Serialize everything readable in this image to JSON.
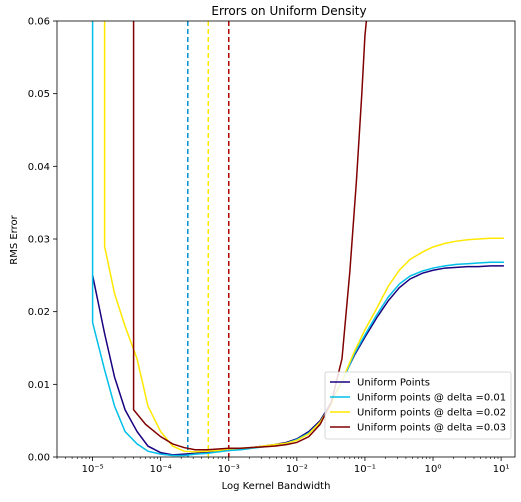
{
  "chart_data": {
    "type": "line",
    "title": "Errors on Uniform Density",
    "xlabel": "Log Kernel Bandwidth",
    "ylabel": "RMS Error",
    "xscale": "log",
    "xlim": [
      3e-06,
      16
    ],
    "ylim": [
      0,
      0.06
    ],
    "x_ticks": [
      {
        "value": 1e-05,
        "label": "10⁻⁵"
      },
      {
        "value": 0.0001,
        "label": "10⁻⁴"
      },
      {
        "value": 0.001,
        "label": "10⁻³"
      },
      {
        "value": 0.01,
        "label": "10⁻²"
      },
      {
        "value": 0.1,
        "label": "10⁻¹"
      },
      {
        "value": 1,
        "label": "10⁰"
      },
      {
        "value": 10,
        "label": "10¹"
      }
    ],
    "y_ticks": [
      "0.00",
      "0.01",
      "0.02",
      "0.03",
      "0.04",
      "0.05",
      "0.06"
    ],
    "grid": false,
    "legend_position": "lower-right",
    "series": [
      {
        "name": "Uniform Points",
        "color": "#1a0080",
        "x": [
          1e-05,
          1.5e-05,
          2.1e-05,
          3e-05,
          4.5e-05,
          6.5e-05,
          0.0001,
          0.00015,
          0.00022,
          0.00032,
          0.00048,
          0.0007,
          0.001,
          0.0015,
          0.0022,
          0.0032,
          0.0047,
          0.007,
          0.01,
          0.015,
          0.022,
          0.032,
          0.046,
          0.07,
          0.1,
          0.15,
          0.22,
          0.32,
          0.46,
          0.7,
          1,
          1.5,
          2.2,
          3.2,
          4.6,
          7,
          11
        ],
        "y": [
          0.025,
          0.017,
          0.011,
          0.0065,
          0.0035,
          0.0015,
          0.0006,
          0.0003,
          0.0004,
          0.0005,
          0.0007,
          0.0008,
          0.0009,
          0.0011,
          0.0013,
          0.0015,
          0.0017,
          0.002,
          0.0025,
          0.0035,
          0.005,
          0.0075,
          0.0105,
          0.014,
          0.0165,
          0.0192,
          0.0215,
          0.0233,
          0.0245,
          0.0253,
          0.0257,
          0.026,
          0.0261,
          0.0262,
          0.0262,
          0.0263,
          0.0263
        ]
      },
      {
        "name": "Uniform points @ delta =0.01",
        "color": "#00c0e8",
        "x": [
          1e-05,
          1e-05,
          1.5e-05,
          2.1e-05,
          3e-05,
          4.5e-05,
          6.5e-05,
          0.0001,
          0.00015,
          0.00022,
          0.00032,
          0.00048,
          0.0007,
          0.001,
          0.0015,
          0.0022,
          0.0032,
          0.0047,
          0.007,
          0.01,
          0.015,
          0.022,
          0.032,
          0.046,
          0.07,
          0.1,
          0.15,
          0.22,
          0.32,
          0.46,
          0.7,
          1,
          1.5,
          2.2,
          3.2,
          4.6,
          7,
          11
        ],
        "y": [
          0.06,
          0.0185,
          0.012,
          0.007,
          0.0035,
          0.0018,
          0.0008,
          0.0004,
          0.0002,
          0.0002,
          0.0004,
          0.0005,
          0.0007,
          0.0009,
          0.001,
          0.0012,
          0.0014,
          0.0016,
          0.0019,
          0.0024,
          0.0033,
          0.0048,
          0.0073,
          0.0103,
          0.0142,
          0.0168,
          0.0196,
          0.022,
          0.0238,
          0.0249,
          0.0256,
          0.026,
          0.0263,
          0.0265,
          0.0266,
          0.0267,
          0.0268,
          0.0268
        ]
      },
      {
        "name": "Uniform points @ delta =0.02",
        "color": "#ffe800",
        "x": [
          1.5e-05,
          1.5e-05,
          2.1e-05,
          3e-05,
          4.5e-05,
          6.5e-05,
          0.0001,
          0.00015,
          0.00022,
          0.00032,
          0.00048,
          0.0007,
          0.001,
          0.0015,
          0.0022,
          0.0032,
          0.0047,
          0.007,
          0.01,
          0.015,
          0.022,
          0.032,
          0.046,
          0.07,
          0.1,
          0.15,
          0.22,
          0.32,
          0.46,
          0.7,
          1,
          1.5,
          2.2,
          3.2,
          4.6,
          7,
          11
        ],
        "y": [
          0.06,
          0.029,
          0.0225,
          0.018,
          0.0135,
          0.007,
          0.0035,
          0.0015,
          0.0008,
          0.0007,
          0.0008,
          0.0009,
          0.0011,
          0.0012,
          0.0013,
          0.0015,
          0.0017,
          0.0019,
          0.0023,
          0.0032,
          0.0048,
          0.0072,
          0.0105,
          0.0145,
          0.0175,
          0.0205,
          0.0235,
          0.0257,
          0.0272,
          0.0282,
          0.0289,
          0.0294,
          0.0297,
          0.0299,
          0.03,
          0.0301,
          0.0301
        ]
      },
      {
        "name": "Uniform points @ delta =0.03",
        "color": "#800000",
        "x": [
          4e-05,
          4e-05,
          6e-05,
          0.0001,
          0.00015,
          0.00022,
          0.00032,
          0.00048,
          0.0007,
          0.001,
          0.0015,
          0.0022,
          0.0032,
          0.0047,
          0.007,
          0.01,
          0.015,
          0.022,
          0.032,
          0.046,
          0.06,
          0.075,
          0.09,
          0.1,
          0.105
        ],
        "y": [
          0.06,
          0.0065,
          0.0045,
          0.0028,
          0.0018,
          0.0013,
          0.001,
          0.001,
          0.0011,
          0.0012,
          0.0012,
          0.0013,
          0.0014,
          0.0015,
          0.0017,
          0.002,
          0.0028,
          0.0045,
          0.0075,
          0.0135,
          0.0255,
          0.038,
          0.05,
          0.058,
          0.06
        ]
      }
    ],
    "vlines": [
      {
        "x": 0.00025,
        "color": "#0090d0",
        "style": "dashed"
      },
      {
        "x": 0.0005,
        "color": "#ffe800",
        "style": "dashed"
      },
      {
        "x": 0.001,
        "color": "#b00000",
        "style": "dashed"
      }
    ]
  }
}
